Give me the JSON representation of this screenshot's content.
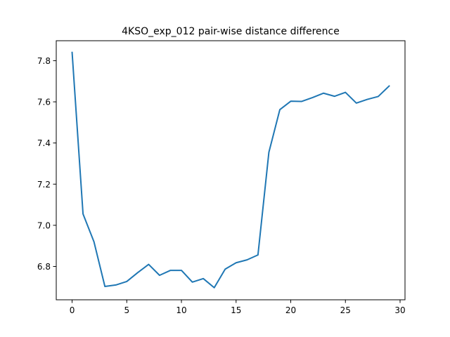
{
  "chart_data": {
    "type": "line",
    "title": "4KSO_exp_012 pair-wise distance difference",
    "xlabel": "",
    "ylabel": "",
    "xlim": [
      -1.45,
      30.45
    ],
    "ylim": [
      6.638,
      7.897
    ],
    "xticks": [
      0,
      5,
      10,
      15,
      20,
      25,
      30
    ],
    "yticks": [
      6.8,
      7.0,
      7.2,
      7.4,
      7.6,
      7.8
    ],
    "grid": false,
    "line_color": "#1f77b4",
    "series": [
      {
        "name": "",
        "x": [
          0,
          1,
          2,
          3,
          4,
          5,
          6,
          7,
          8,
          9,
          10,
          11,
          12,
          13,
          14,
          15,
          16,
          17,
          18,
          19,
          20,
          21,
          22,
          23,
          24,
          25,
          26,
          27,
          28,
          29
        ],
        "values": [
          7.84,
          7.055,
          6.92,
          6.703,
          6.71,
          6.727,
          6.77,
          6.81,
          6.757,
          6.781,
          6.781,
          6.724,
          6.741,
          6.697,
          6.787,
          6.818,
          6.832,
          6.856,
          7.355,
          7.562,
          7.603,
          7.602,
          7.621,
          7.642,
          7.627,
          7.646,
          7.594,
          7.612,
          7.626,
          7.677
        ]
      }
    ]
  }
}
